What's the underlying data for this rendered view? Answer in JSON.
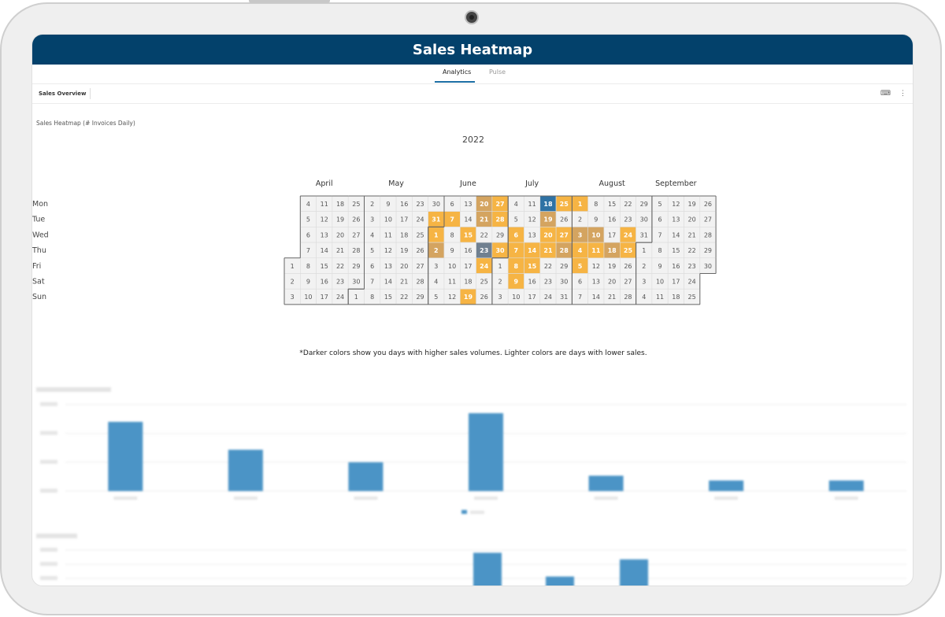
{
  "app": {
    "title": "Sales Heatmap"
  },
  "tabs": [
    {
      "label": "Analytics",
      "active": true
    },
    {
      "label": "Pulse",
      "active": false
    }
  ],
  "toolbar": {
    "title": "Sales Overview"
  },
  "heatmap": {
    "title": "Sales Heatmap (# Invoices Daily)",
    "year": "2022",
    "note": "*Darker colors show you days with higher sales volumes. Lighter colors are days with lower sales.",
    "months": [
      "April",
      "May",
      "June",
      "July",
      "August",
      "September"
    ],
    "weekdays": [
      "Mon",
      "Tue",
      "Wed",
      "Thu",
      "Fri",
      "Sat",
      "Sun"
    ],
    "colors": {
      "low": "#f6b444",
      "mid": "#d4a460",
      "high": "#708090",
      "top": "#2f72a4",
      "empty": "#f2f2f2"
    },
    "start_date": "2022-04-01",
    "end_date": "2022-09-30",
    "highlighted": {
      "2022-05-31": "low",
      "2022-06-01": "low",
      "2022-06-02": "mid",
      "2022-06-07": "low",
      "2022-06-15": "low",
      "2022-06-19": "low",
      "2022-06-20": "mid",
      "2022-06-21": "mid",
      "2022-06-23": "high",
      "2022-06-24": "low",
      "2022-06-27": "low",
      "2022-06-28": "low",
      "2022-06-30": "low",
      "2022-07-06": "low",
      "2022-07-07": "low",
      "2022-07-08": "low",
      "2022-07-09": "low",
      "2022-07-14": "low",
      "2022-07-15": "low",
      "2022-07-18": "top",
      "2022-07-19": "mid",
      "2022-07-20": "low",
      "2022-07-21": "low",
      "2022-07-25": "low",
      "2022-07-27": "low",
      "2022-07-28": "mid",
      "2022-08-01": "low",
      "2022-08-03": "mid",
      "2022-08-04": "low",
      "2022-08-05": "low",
      "2022-08-10": "mid",
      "2022-08-11": "low",
      "2022-08-18": "mid",
      "2022-08-24": "low",
      "2022-08-25": "low"
    }
  },
  "chart_data": {
    "type": "bar",
    "categories": [
      "",
      "",
      "",
      "",
      "",
      "",
      ""
    ],
    "values": [
      3600,
      2150,
      1500,
      4050,
      800,
      550,
      550
    ],
    "ylim": [
      0,
      4500
    ],
    "grid": true,
    "color": "#4b94c6"
  },
  "lower_chart": {
    "values": [
      1300,
      400,
      1050
    ],
    "color": "#4b94c6"
  }
}
